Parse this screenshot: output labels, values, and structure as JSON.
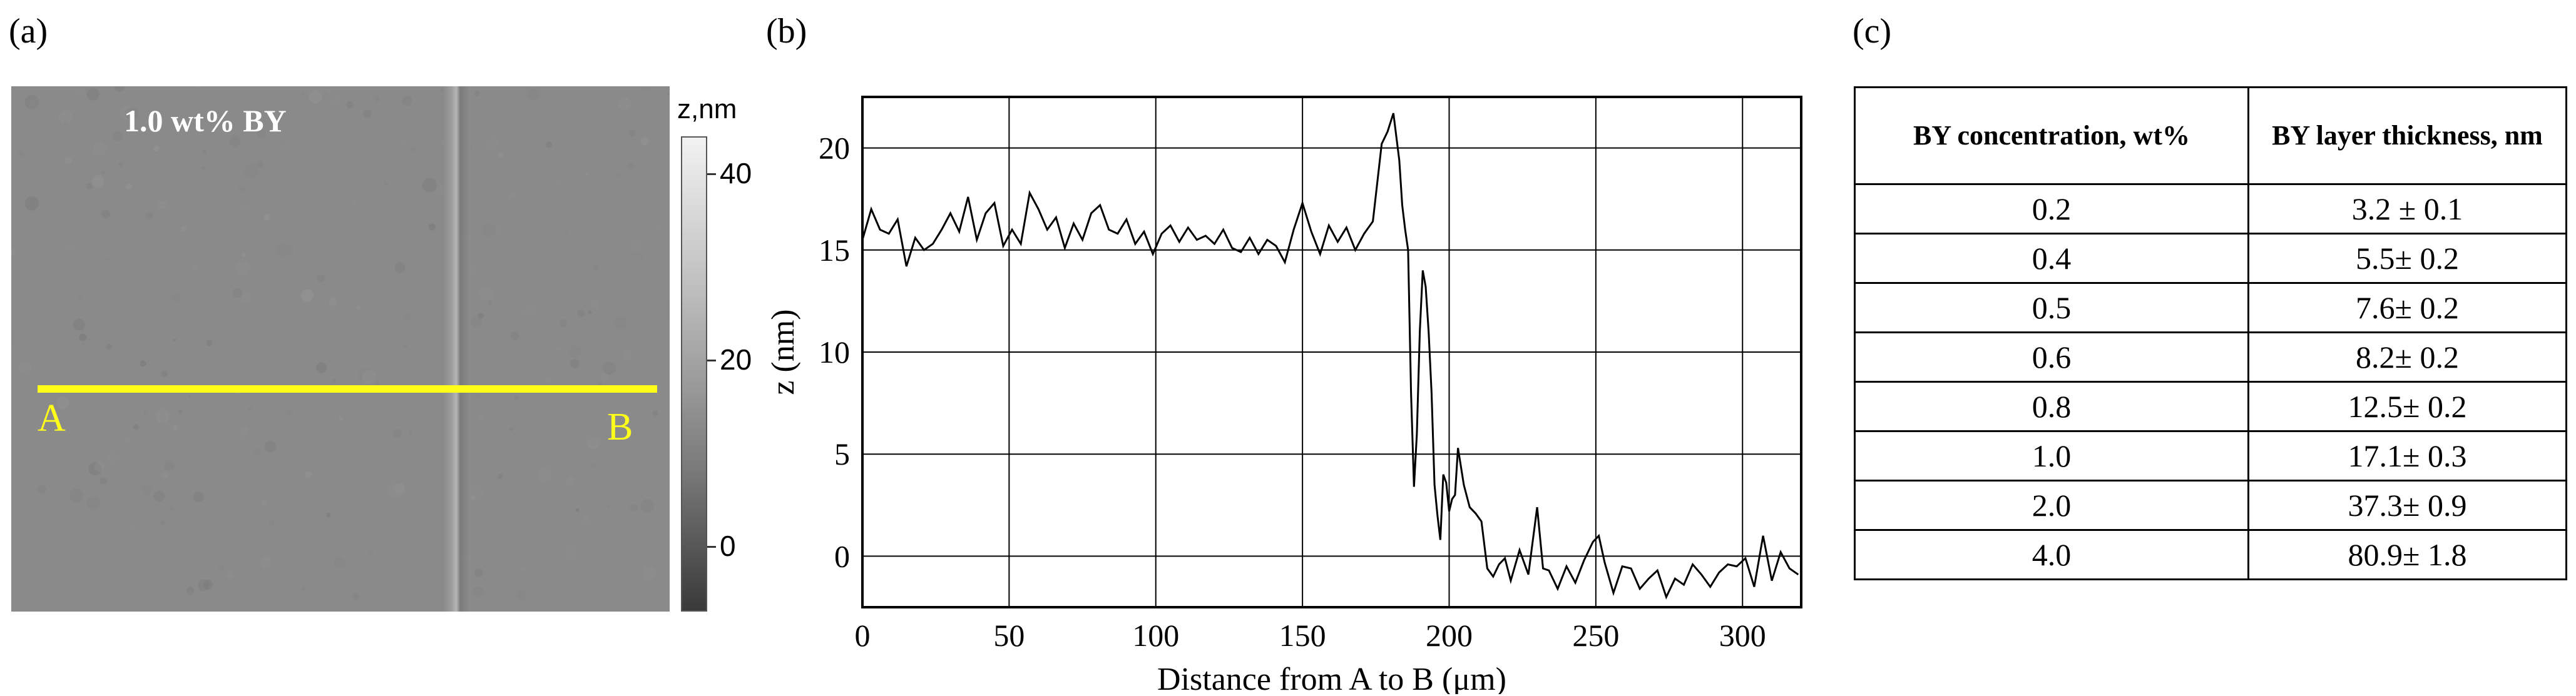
{
  "panels": {
    "a": "(a)",
    "b": "(b)",
    "c": "(c)"
  },
  "afm": {
    "title": "1.0 wt% BY",
    "point_a": "A",
    "point_b": "B",
    "line_color": "#ffff1a",
    "colorbar": {
      "unit": "z,nm",
      "ticks": [
        {
          "value": 40,
          "label": "40"
        },
        {
          "value": 20,
          "label": "20"
        },
        {
          "value": 0,
          "label": "0"
        }
      ],
      "range": [
        -7,
        44
      ]
    }
  },
  "chart_data": {
    "type": "line",
    "title": "",
    "xlabel": "Distance from A to B (μm)",
    "ylabel": "z (nm)",
    "xlim": [
      0,
      320
    ],
    "ylim": [
      -2.5,
      22.5
    ],
    "xticks": [
      0,
      50,
      100,
      150,
      200,
      250,
      300
    ],
    "yticks": [
      0,
      5,
      10,
      15,
      20
    ],
    "grid": true,
    "series": [
      {
        "x": [
          0,
          3,
          6,
          9,
          12,
          15,
          18,
          21,
          24,
          27,
          30,
          33,
          36,
          39,
          42,
          45,
          48,
          51,
          54,
          57,
          60,
          63,
          66,
          69,
          72,
          75,
          78,
          81,
          84,
          87,
          90,
          93,
          96,
          99,
          102,
          105,
          108,
          111,
          114,
          117,
          120,
          123,
          126,
          129,
          132,
          135,
          138,
          141,
          144,
          147,
          150,
          153,
          156,
          159,
          162,
          165,
          168,
          171,
          174,
          177,
          179,
          181,
          183,
          184,
          185,
          186,
          187,
          188,
          189,
          190,
          191,
          192,
          193,
          194,
          195,
          196,
          197,
          198,
          199,
          200,
          201,
          202,
          203,
          205,
          207,
          209,
          211,
          213,
          215,
          217,
          219,
          221,
          224,
          227,
          230,
          232,
          234,
          237,
          240,
          243,
          246,
          249,
          251,
          253,
          256,
          259,
          262,
          265,
          268,
          271,
          274,
          277,
          280,
          283,
          286,
          289,
          292,
          295,
          298,
          301,
          304,
          307,
          310,
          313,
          316,
          319
        ],
        "y": [
          15.5,
          17.0,
          16.0,
          15.8,
          16.5,
          14.2,
          15.6,
          15.0,
          15.3,
          16.0,
          16.8,
          15.9,
          17.6,
          15.5,
          16.8,
          17.3,
          15.2,
          16.0,
          15.3,
          17.8,
          17.0,
          16.0,
          16.6,
          15.1,
          16.3,
          15.5,
          16.8,
          17.2,
          16.0,
          15.8,
          16.5,
          15.3,
          15.9,
          14.8,
          15.8,
          16.2,
          15.4,
          16.1,
          15.5,
          15.7,
          15.3,
          16.0,
          15.1,
          14.9,
          15.6,
          14.8,
          15.5,
          15.2,
          14.4,
          16.0,
          17.3,
          15.9,
          14.8,
          16.2,
          15.4,
          16.1,
          15.0,
          15.8,
          16.4,
          20.2,
          20.8,
          21.7,
          19.4,
          17.2,
          16.0,
          15.0,
          8.0,
          3.4,
          6.0,
          11.0,
          14.0,
          13.2,
          11.0,
          8.0,
          3.5,
          2.0,
          0.8,
          4.0,
          3.6,
          2.2,
          2.8,
          3.0,
          5.3,
          3.5,
          2.4,
          2.1,
          1.7,
          -0.6,
          -1.0,
          -0.4,
          -0.1,
          -1.2,
          0.3,
          -0.9,
          2.4,
          -0.6,
          -0.7,
          -1.6,
          -0.5,
          -1.3,
          -0.2,
          0.7,
          1.0,
          -0.3,
          -1.8,
          -0.5,
          -0.6,
          -1.6,
          -1.1,
          -0.7,
          -2.0,
          -1.1,
          -1.4,
          -0.4,
          -0.9,
          -1.5,
          -0.8,
          -0.4,
          -0.5,
          -0.1,
          -1.5,
          1.0,
          -1.2,
          0.2,
          -0.6,
          -0.9
        ]
      }
    ]
  },
  "table": {
    "headers": [
      "BY concentration, wt%",
      "BY layer thickness, nm"
    ],
    "rows": [
      [
        "0.2",
        "3.2 ± 0.1"
      ],
      [
        "0.4",
        "5.5± 0.2"
      ],
      [
        "0.5",
        "7.6± 0.2"
      ],
      [
        "0.6",
        "8.2± 0.2"
      ],
      [
        "0.8",
        "12.5± 0.2"
      ],
      [
        "1.0",
        "17.1± 0.3"
      ],
      [
        "2.0",
        "37.3± 0.9"
      ],
      [
        "4.0",
        "80.9± 1.8"
      ]
    ]
  }
}
